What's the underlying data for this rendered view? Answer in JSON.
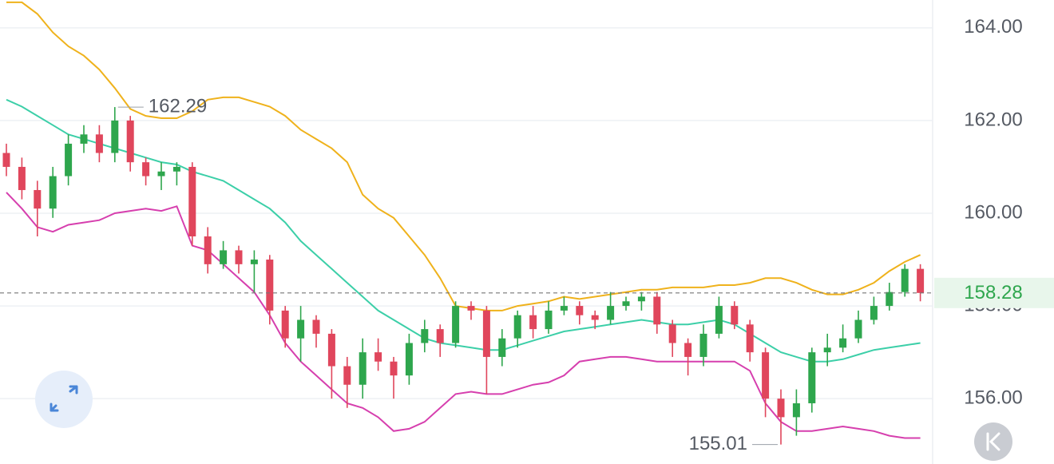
{
  "chart_data": {
    "type": "candlestick",
    "colors": {
      "up": "#2ea64d",
      "down": "#e0465c",
      "upper": "#efb21c",
      "middle": "#3ccfa8",
      "lower": "#d63fae",
      "last": "#2ea64d"
    },
    "ylim": [
      154.59,
      164.6
    ],
    "yticks": [
      {
        "value": 164,
        "label": "164.00"
      },
      {
        "value": 162,
        "label": "162.00"
      },
      {
        "value": 160,
        "label": "160.00"
      },
      {
        "value": 158,
        "label": "158.00"
      },
      {
        "value": 156,
        "label": "156.00"
      }
    ],
    "grid": true,
    "open": [
      161.3,
      161.0,
      160.5,
      160.1,
      160.8,
      161.5,
      161.7,
      161.3,
      162.0,
      161.1,
      160.8,
      160.9,
      161.0,
      159.5,
      158.9,
      159.2,
      158.9,
      159.0,
      157.9,
      157.3,
      157.7,
      157.4,
      156.7,
      156.3,
      157.0,
      156.8,
      156.5,
      157.2,
      157.5,
      157.2,
      158.0,
      157.9,
      156.9,
      157.3,
      157.8,
      157.5,
      157.9,
      158.0,
      157.8,
      157.7,
      158.0,
      158.1,
      158.2,
      157.6,
      157.2,
      156.9,
      157.4,
      158.0,
      157.6,
      157.0,
      156.0,
      155.6,
      155.9,
      157.0,
      157.1,
      157.3,
      157.7,
      158.0,
      158.3,
      158.8
    ],
    "high": [
      161.5,
      161.2,
      160.7,
      161.0,
      161.7,
      161.9,
      161.9,
      162.29,
      162.1,
      161.2,
      161.1,
      161.1,
      161.1,
      159.7,
      159.4,
      159.3,
      159.2,
      159.1,
      158.0,
      158.0,
      157.8,
      157.5,
      156.9,
      157.3,
      157.3,
      156.9,
      157.4,
      157.7,
      157.6,
      158.1,
      158.1,
      158.0,
      157.5,
      157.9,
      158.0,
      158.1,
      158.2,
      158.1,
      157.9,
      158.3,
      158.2,
      158.3,
      158.3,
      157.7,
      157.3,
      157.6,
      158.2,
      158.1,
      157.7,
      157.1,
      156.2,
      156.2,
      157.1,
      157.4,
      157.6,
      157.9,
      158.2,
      158.5,
      158.9,
      158.9
    ],
    "low": [
      160.8,
      160.3,
      159.5,
      159.9,
      160.6,
      161.3,
      161.1,
      161.1,
      160.9,
      160.6,
      160.5,
      160.6,
      159.3,
      158.7,
      158.8,
      158.7,
      158.3,
      157.6,
      157.1,
      156.8,
      157.1,
      156.0,
      155.8,
      156.0,
      156.6,
      156.0,
      156.3,
      157.0,
      156.9,
      157.1,
      157.7,
      156.1,
      156.7,
      157.1,
      157.3,
      157.4,
      157.8,
      157.6,
      157.5,
      157.6,
      157.9,
      157.9,
      157.4,
      156.9,
      156.5,
      156.7,
      157.3,
      157.5,
      156.8,
      155.6,
      155.01,
      155.2,
      155.7,
      156.7,
      157.0,
      157.2,
      157.6,
      157.9,
      158.2,
      158.1
    ],
    "close": [
      161.0,
      160.5,
      160.1,
      160.8,
      161.5,
      161.7,
      161.3,
      162.0,
      161.1,
      160.8,
      160.9,
      161.0,
      159.5,
      158.9,
      159.2,
      158.9,
      159.0,
      157.9,
      157.3,
      157.7,
      157.4,
      156.7,
      156.3,
      157.0,
      156.8,
      156.5,
      157.2,
      157.5,
      157.2,
      158.0,
      157.9,
      156.9,
      157.3,
      157.8,
      157.5,
      157.9,
      158.0,
      157.8,
      157.7,
      158.0,
      158.1,
      158.2,
      157.6,
      157.2,
      156.9,
      157.4,
      158.0,
      157.6,
      157.0,
      156.0,
      155.6,
      155.9,
      157.0,
      157.1,
      157.3,
      157.7,
      158.0,
      158.3,
      158.8,
      158.28
    ],
    "upper": [
      164.55,
      164.55,
      164.3,
      163.9,
      163.6,
      163.4,
      163.1,
      162.7,
      162.25,
      162.1,
      162.05,
      162.05,
      162.2,
      162.45,
      162.5,
      162.5,
      162.4,
      162.3,
      162.1,
      161.8,
      161.6,
      161.4,
      161.1,
      160.4,
      160.1,
      159.9,
      159.5,
      159.1,
      158.6,
      158.0,
      157.95,
      157.9,
      157.9,
      158.0,
      158.05,
      158.1,
      158.2,
      158.15,
      158.2,
      158.25,
      158.3,
      158.35,
      158.35,
      158.4,
      158.4,
      158.4,
      158.45,
      158.45,
      158.5,
      158.6,
      158.6,
      158.5,
      158.35,
      158.25,
      158.25,
      158.35,
      158.5,
      158.75,
      158.95,
      159.1
    ],
    "middle": [
      162.45,
      162.3,
      162.1,
      161.9,
      161.7,
      161.6,
      161.5,
      161.4,
      161.3,
      161.2,
      161.1,
      161.05,
      160.9,
      160.8,
      160.7,
      160.5,
      160.3,
      160.1,
      159.8,
      159.4,
      159.1,
      158.8,
      158.5,
      158.2,
      157.9,
      157.7,
      157.5,
      157.3,
      157.2,
      157.15,
      157.1,
      157.05,
      157.05,
      157.15,
      157.25,
      157.35,
      157.45,
      157.5,
      157.55,
      157.6,
      157.65,
      157.7,
      157.65,
      157.6,
      157.6,
      157.65,
      157.7,
      157.6,
      157.4,
      157.2,
      157.0,
      156.9,
      156.8,
      156.8,
      156.85,
      156.95,
      157.05,
      157.1,
      157.15,
      157.2
    ],
    "lower": [
      160.45,
      160.1,
      159.7,
      159.6,
      159.75,
      159.8,
      159.85,
      160.0,
      160.05,
      160.1,
      160.05,
      160.15,
      159.3,
      159.2,
      158.9,
      158.6,
      158.3,
      157.8,
      157.2,
      156.8,
      156.5,
      156.2,
      155.9,
      155.8,
      155.6,
      155.3,
      155.35,
      155.5,
      155.8,
      156.1,
      156.15,
      156.1,
      156.1,
      156.2,
      156.3,
      156.35,
      156.5,
      156.8,
      156.85,
      156.9,
      156.9,
      156.85,
      156.8,
      156.8,
      156.8,
      156.8,
      156.8,
      156.8,
      156.6,
      155.9,
      155.5,
      155.3,
      155.3,
      155.35,
      155.4,
      155.35,
      155.3,
      155.2,
      155.15,
      155.15
    ]
  }
}
